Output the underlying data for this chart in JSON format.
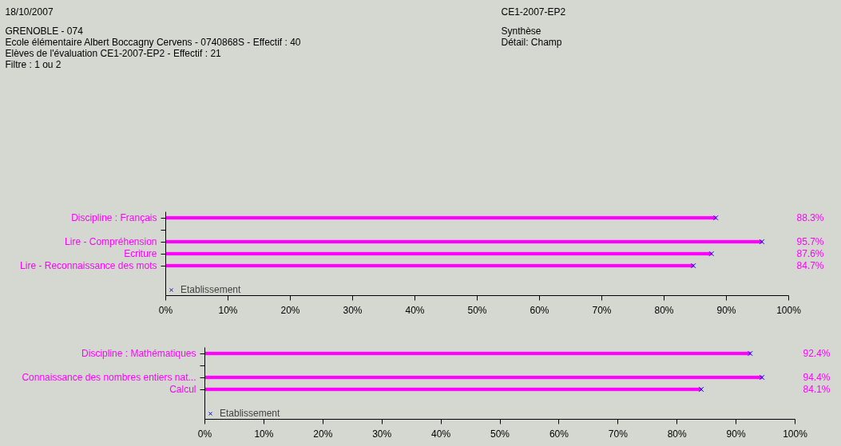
{
  "chart_data": [
    {
      "type": "bar",
      "orientation": "horizontal",
      "annotations": [
        "18/10/2007",
        "GRENOBLE - 074",
        "Ecole élémentaire Albert Boccagny Cervens -  0740868S - Effectif : 40",
        " Elèves de l'évaluation CE1-2007-EP2 - Effectif : 21",
        "Filtre : 1 ou 2",
        "CE1-2007-EP2",
        "Synthèse",
        "Détail: Champ"
      ],
      "categories": [
        "Discipline : Français",
        null,
        "Lire - Compréhension",
        "Ecriture",
        "Lire - Reconnaissance des mots"
      ],
      "series": [
        {
          "type": "bar",
          "color": "#ff00ff",
          "values": [
            88.3,
            null,
            95.7,
            87.6,
            84.7
          ],
          "value_labels": [
            "88.3%",
            null,
            "95.7%",
            "87.6%",
            "84.7%"
          ]
        },
        {
          "type": "scatter",
          "name": "Etablissement",
          "color": "#0000ff",
          "values": [
            88.3,
            null,
            95.7,
            87.6,
            84.7
          ]
        }
      ],
      "marker": "cross",
      "xlim": [
        0,
        100
      ],
      "xticks": [
        {
          "value": 0,
          "label": "0%"
        },
        {
          "value": 10,
          "label": "10%"
        },
        {
          "value": 20,
          "label": "20%"
        },
        {
          "value": 30,
          "label": "30%"
        },
        {
          "value": 40,
          "label": "40%"
        },
        {
          "value": 50,
          "label": "50%"
        },
        {
          "value": 60,
          "label": "60%"
        },
        {
          "value": 70,
          "label": "70%"
        },
        {
          "value": 80,
          "label": "80%"
        },
        {
          "value": 90,
          "label": "90%"
        },
        {
          "value": 100,
          "label": "100%"
        }
      ],
      "legend": "bottom left",
      "grid": false
    },
    {
      "type": "bar",
      "orientation": "horizontal",
      "categories": [
        "Discipline : Mathématiques",
        null,
        "Connaissance des nombres entiers nat...",
        "Calcul"
      ],
      "series": [
        {
          "type": "bar",
          "color": "#ff00ff",
          "values": [
            92.4,
            null,
            94.4,
            84.1
          ],
          "value_labels": [
            "92.4%",
            null,
            "94.4%",
            "84.1%"
          ]
        },
        {
          "type": "scatter",
          "name": "Etablissement",
          "color": "#0000ff",
          "values": [
            92.4,
            null,
            94.4,
            84.1
          ]
        }
      ],
      "marker": "cross",
      "xlim": [
        0,
        100
      ],
      "xticks": [
        {
          "value": 0,
          "label": "0%"
        },
        {
          "value": 10,
          "label": "10%"
        },
        {
          "value": 20,
          "label": "20%"
        },
        {
          "value": 30,
          "label": "30%"
        },
        {
          "value": 40,
          "label": "40%"
        },
        {
          "value": 50,
          "label": "50%"
        },
        {
          "value": 60,
          "label": "60%"
        },
        {
          "value": 70,
          "label": "70%"
        },
        {
          "value": 80,
          "label": "80%"
        },
        {
          "value": 90,
          "label": "90%"
        },
        {
          "value": 100,
          "label": "100%"
        }
      ],
      "legend": "bottom left",
      "grid": false
    }
  ]
}
